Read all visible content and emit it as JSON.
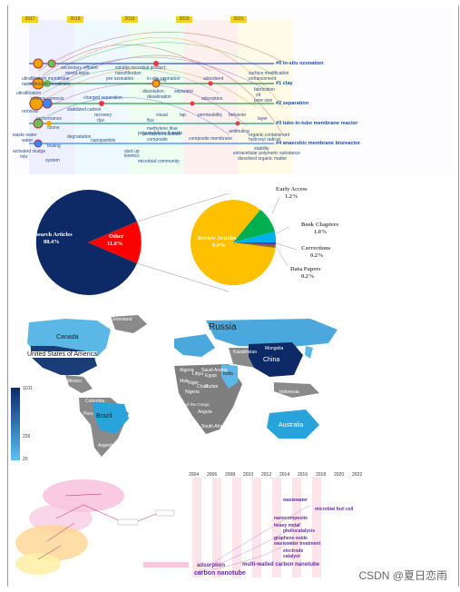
{
  "panel1": {
    "years": [
      "2017",
      "2018",
      "2019",
      "2020",
      "2021"
    ],
    "clusters": [
      "#0 in-situ ozonation",
      "#1 clay",
      "#2 separation",
      "#3 tube-in-tube membrane reactor",
      "#4 anaerobic membrane bioreactor"
    ],
    "keywords": [
      "secondary effluent",
      "soluble microbial product",
      "nanofiltration",
      "surface modification",
      "in-situ ozonation",
      "enhancement",
      "adsorbent",
      "mixed liquor",
      "pre ozonation",
      "ultrafiltration",
      "desalination",
      "charged separation",
      "dissolution",
      "fabrication",
      "performance",
      "oil",
      "pore size",
      "reverse osmosis",
      "adsorption",
      "recovery",
      "dye",
      "stabilized carbon",
      "nanoparticle",
      "permeability",
      "behavior",
      "layer",
      "antifouling",
      "organic contaminant",
      "hydroxyl radical",
      "waste water",
      "ozone",
      "activated sludge",
      "mbr",
      "system",
      "start up",
      "kinetics",
      "microbial community",
      "extracellular polymeric substance",
      "dissolved organic matter",
      "composite membrane",
      "polyvinylidene fluoride",
      "composite",
      "methylene blue",
      "peroxymonosulfate",
      "flux",
      "ultrafiltration membrane",
      "nanofiltration membrane",
      "degradation",
      "water",
      "removal",
      "separator",
      "Fe-N",
      "visual",
      "tap",
      "stability",
      "fouling"
    ]
  },
  "panel2": {
    "main_pie": [
      {
        "label": "Research Articles",
        "value": "88.4%",
        "color": "#0d2a66"
      },
      {
        "label": "Other",
        "value": "11.6%",
        "color": "#ff0000"
      }
    ],
    "sub_pie": [
      {
        "label": "Review Articles",
        "value": "9.0%",
        "color": "#ffc000"
      },
      {
        "label": "Early Access",
        "value": "1.2%",
        "color": "#00b050"
      },
      {
        "label": "Book Chapters",
        "value": "1.0%",
        "color": "#00b0f0"
      },
      {
        "label": "Corrections",
        "value": "0.2%",
        "color": "#7030a0"
      },
      {
        "label": "Data Papers",
        "value": "0.2%",
        "color": "#8b6b3a"
      }
    ]
  },
  "panel3": {
    "legend": {
      "max": "1101",
      "mid": "226",
      "min": "20"
    },
    "countries_big": [
      "Russia",
      "Canada",
      "United States of America",
      "China",
      "Brazil",
      "Australia",
      "India"
    ],
    "countries_small": [
      "Greenland",
      "Kazakhstan",
      "Mongolia",
      "Iran",
      "Saudi Arabia",
      "Algeria",
      "Libya",
      "Egypt",
      "Sudan",
      "Niger",
      "Chad",
      "Mali",
      "Nigeria",
      "Angola",
      "Democratic Republic of the Congo",
      "South Africa",
      "Argentina",
      "Peru",
      "Colombia",
      "Mexico",
      "Indonesia"
    ]
  },
  "panel4": {
    "years": [
      "2004",
      "2006",
      "2008",
      "2010",
      "2012",
      "2014",
      "2016",
      "2018",
      "2020",
      "2022"
    ],
    "keywords": [
      "carbon nanotube",
      "multi-walled carbon nanotube",
      "adsorption",
      "nanocomposite",
      "graphene oxide",
      "wastewater",
      "microbial fuel cell",
      "heavy metal",
      "wastewater treatment",
      "photocatalysis",
      "electrode",
      "catalyst"
    ]
  },
  "watermark": "CSDN @夏日恋雨"
}
